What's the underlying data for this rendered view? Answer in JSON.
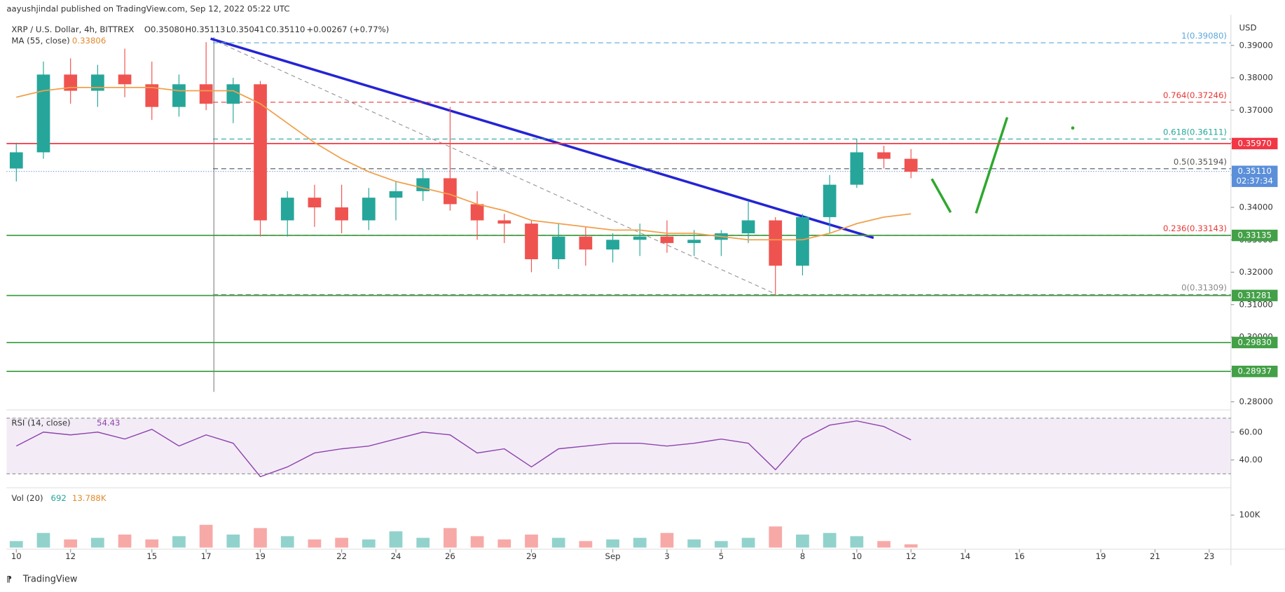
{
  "header": {
    "publisher": "aayushjindal published on TradingView.com, Sep 12, 2022 05:22 UTC",
    "symbol": "XRP / U.S. Dollar, 4h, BITTREX",
    "open": "O0.35080",
    "high": "H0.35113",
    "low": "L0.35041",
    "close": "C0.35110",
    "change": "+0.00267 (+0.77%)",
    "ma_value": "0.33806",
    "brand": "TradingView"
  },
  "chart_data": [
    {
      "type": "candlestick",
      "currency": "USD",
      "up_color": "#26a69a",
      "down_color": "#ef5350",
      "x": [
        0,
        1,
        2,
        3,
        4,
        5,
        6,
        7,
        8,
        9,
        10,
        11,
        12,
        13,
        14,
        15,
        16,
        17,
        18,
        19,
        20,
        21,
        22,
        23,
        24,
        25,
        26,
        27,
        28,
        29,
        30,
        31,
        32,
        33
      ],
      "open": [
        0.352,
        0.357,
        0.381,
        0.376,
        0.381,
        0.378,
        0.371,
        0.378,
        0.372,
        0.378,
        0.336,
        0.343,
        0.34,
        0.336,
        0.343,
        0.345,
        0.349,
        0.341,
        0.336,
        0.335,
        0.324,
        0.331,
        0.327,
        0.33,
        0.331,
        0.329,
        0.33,
        0.332,
        0.336,
        0.322,
        0.337,
        0.347,
        0.357,
        0.355
      ],
      "high": [
        0.36,
        0.385,
        0.386,
        0.384,
        0.389,
        0.385,
        0.381,
        0.391,
        0.38,
        0.379,
        0.345,
        0.347,
        0.347,
        0.346,
        0.348,
        0.352,
        0.371,
        0.345,
        0.338,
        0.336,
        0.335,
        0.334,
        0.332,
        0.335,
        0.336,
        0.333,
        0.333,
        0.342,
        0.337,
        0.338,
        0.35,
        0.361,
        0.359,
        0.358
      ],
      "low": [
        0.348,
        0.355,
        0.372,
        0.371,
        0.374,
        0.367,
        0.368,
        0.37,
        0.366,
        0.331,
        0.331,
        0.334,
        0.332,
        0.333,
        0.336,
        0.342,
        0.339,
        0.33,
        0.329,
        0.32,
        0.321,
        0.322,
        0.323,
        0.325,
        0.326,
        0.325,
        0.325,
        0.329,
        0.313,
        0.319,
        0.332,
        0.346,
        0.352,
        0.349
      ],
      "close": [
        0.357,
        0.381,
        0.376,
        0.381,
        0.378,
        0.371,
        0.378,
        0.372,
        0.378,
        0.336,
        0.343,
        0.34,
        0.336,
        0.343,
        0.345,
        0.349,
        0.341,
        0.336,
        0.335,
        0.324,
        0.331,
        0.327,
        0.33,
        0.331,
        0.329,
        0.33,
        0.332,
        0.336,
        0.322,
        0.337,
        0.347,
        0.357,
        0.355,
        0.351
      ],
      "series": [
        {
          "name": "MA (55, close)",
          "color": "#f0a04b",
          "values": [
            0.374,
            0.376,
            0.377,
            0.377,
            0.377,
            0.377,
            0.376,
            0.376,
            0.376,
            0.372,
            0.366,
            0.36,
            0.355,
            0.351,
            0.348,
            0.346,
            0.344,
            0.341,
            0.339,
            0.336,
            0.335,
            0.334,
            0.333,
            0.333,
            0.332,
            0.332,
            0.331,
            0.33,
            0.33,
            0.33,
            0.332,
            0.335,
            0.337,
            0.338
          ]
        }
      ],
      "xlim": [
        -0.36,
        44.8
      ],
      "xticks": [
        {
          "value": 0,
          "label": "10"
        },
        {
          "value": 2,
          "label": "12"
        },
        {
          "value": 5,
          "label": "15"
        },
        {
          "value": 7,
          "label": "17"
        },
        {
          "value": 9,
          "label": "19"
        },
        {
          "value": 12,
          "label": "22"
        },
        {
          "value": 14,
          "label": "24"
        },
        {
          "value": 16,
          "label": "26"
        },
        {
          "value": 19,
          "label": "29"
        },
        {
          "value": 22,
          "label": "Sep"
        },
        {
          "value": 24,
          "label": "3"
        },
        {
          "value": 26,
          "label": "5"
        },
        {
          "value": 29,
          "label": "8"
        },
        {
          "value": 31,
          "label": "10"
        },
        {
          "value": 33,
          "label": "12"
        },
        {
          "value": 35,
          "label": "14"
        },
        {
          "value": 37,
          "label": "16"
        },
        {
          "value": 40,
          "label": "19"
        },
        {
          "value": 42,
          "label": "21"
        },
        {
          "value": 44,
          "label": "23"
        }
      ],
      "ylim": [
        0.2775,
        0.3994
      ],
      "yticks": [
        {
          "value": 0.28,
          "label": "0.28000"
        },
        {
          "value": 0.29,
          "label": "0.29000"
        },
        {
          "value": 0.3,
          "label": "0.30000"
        },
        {
          "value": 0.31,
          "label": "0.31000"
        },
        {
          "value": 0.32,
          "label": "0.32000"
        },
        {
          "value": 0.33,
          "label": "0.33000"
        },
        {
          "value": 0.34,
          "label": "0.34000"
        },
        {
          "value": 0.35,
          "label": "0.35000"
        },
        {
          "value": 0.36,
          "label": "0.36000"
        },
        {
          "value": 0.37,
          "label": "0.37000"
        },
        {
          "value": 0.38,
          "label": "0.38000"
        },
        {
          "value": 0.39,
          "label": "0.39000"
        }
      ],
      "levels": [
        {
          "value": 0.3597,
          "label": "0.35970",
          "color": "#f23645"
        },
        {
          "value": 0.33135,
          "label": "0.33135",
          "color": "#43a047"
        },
        {
          "value": 0.31281,
          "label": "0.31281",
          "color": "#43a047"
        },
        {
          "value": 0.2983,
          "label": "0.29830",
          "color": "#43a047"
        },
        {
          "value": 0.28937,
          "label": "0.28937",
          "color": "#43a047"
        }
      ],
      "price_line": {
        "value": 0.3511,
        "label": "0.35110",
        "countdown": "02:37:34",
        "color": "#5b8fd9"
      },
      "fib": [
        {
          "value": 0.3908,
          "label": "1(0.39080)",
          "color": "#5aa7d9"
        },
        {
          "value": 0.37246,
          "label": "0.764(0.37246)",
          "color": "#e53935"
        },
        {
          "value": 0.36111,
          "label": "0.618(0.36111)",
          "color": "#26a69a"
        },
        {
          "value": 0.35194,
          "label": "0.5(0.35194)",
          "color": "#555555"
        },
        {
          "value": 0.33143,
          "label": "0.236(0.33143)",
          "color": "#e53935"
        },
        {
          "value": 0.31309,
          "label": "0(0.31309)",
          "color": "#888888"
        }
      ]
    },
    {
      "type": "line",
      "title": "RSI (14, close)",
      "color": "#8e44ad",
      "band": [
        30,
        70
      ],
      "ylim": [
        21.8,
        73
      ],
      "yticks": [
        {
          "value": 40,
          "label": "40.00"
        },
        {
          "value": 60,
          "label": "60.00"
        }
      ],
      "values": [
        50,
        60,
        58,
        60,
        55,
        62,
        50,
        58,
        52,
        28,
        35,
        45,
        48,
        50,
        55,
        60,
        58,
        45,
        48,
        35,
        48,
        50,
        52,
        52,
        50,
        52,
        55,
        52,
        33,
        55,
        65,
        68,
        64,
        54.43
      ]
    },
    {
      "type": "bar",
      "title": "Vol (20)",
      "current": "692",
      "ma_label": "13.788K",
      "ylim": [
        0,
        179
      ],
      "yticks": [
        {
          "value": 100,
          "label": "100K"
        }
      ],
      "values": [
        20,
        45,
        25,
        30,
        40,
        25,
        35,
        70,
        40,
        60,
        35,
        25,
        30,
        25,
        50,
        30,
        60,
        35,
        25,
        40,
        30,
        20,
        25,
        30,
        45,
        25,
        20,
        30,
        65,
        40,
        45,
        35,
        20,
        10
      ]
    }
  ]
}
